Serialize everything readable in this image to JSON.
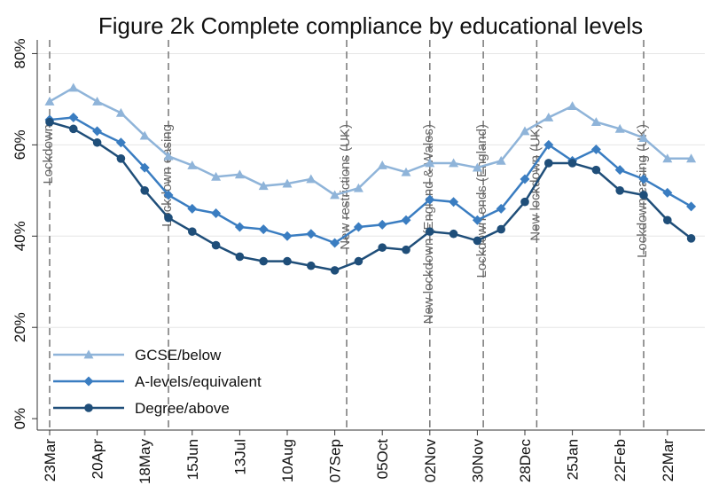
{
  "chart_data": {
    "type": "line",
    "title": "Figure 2k Complete compliance by educational levels",
    "categories": [
      "23Mar",
      null,
      "20Apr",
      null,
      "18May",
      null,
      "15Jun",
      null,
      "13Jul",
      null,
      "10Aug",
      null,
      "07Sep",
      null,
      "05Oct",
      null,
      "02Nov",
      null,
      "30Nov",
      null,
      "28Dec",
      null,
      "25Jan",
      null,
      "22Feb",
      null,
      "22Mar",
      null
    ],
    "series": [
      {
        "name": "GCSE/below",
        "color": "#8fb4d9",
        "marker": "triangle",
        "values": [
          69.5,
          72.5,
          69.5,
          67,
          62,
          57.5,
          55.5,
          53,
          53.5,
          51,
          51.5,
          52.5,
          49,
          50.5,
          55.5,
          54,
          56,
          56,
          55,
          56.5,
          63,
          66,
          68.5,
          65,
          63.5,
          61.5,
          57,
          57
        ]
      },
      {
        "name": "A-levels/equivalent",
        "color": "#3a7dc1",
        "marker": "diamond",
        "values": [
          65.5,
          66,
          63,
          60.5,
          55,
          49,
          46,
          45,
          42,
          41.5,
          40,
          40.5,
          38.5,
          42,
          42.5,
          43.5,
          48,
          47.5,
          43.5,
          46,
          52.5,
          60,
          56.5,
          59,
          54.5,
          52.5,
          49.5,
          46.5
        ]
      },
      {
        "name": "Degree/above",
        "color": "#1f4e79",
        "marker": "circle",
        "values": [
          65,
          63.5,
          60.5,
          57,
          50,
          44,
          41,
          38,
          35.5,
          34.5,
          34.5,
          33.5,
          32.5,
          34.5,
          37.5,
          37,
          41,
          40.5,
          39,
          41.5,
          47.5,
          56,
          56,
          54.5,
          50,
          49,
          43.5,
          39.5
        ]
      }
    ],
    "annotations": [
      {
        "text": "Lockdown",
        "x": 0
      },
      {
        "text": "Lockdown easing",
        "x": 5
      },
      {
        "text": "New restrictions (UK)",
        "x": 12.5
      },
      {
        "text": "New lockdown (England & Wales)",
        "x": 16
      },
      {
        "text": "Lockdown ends (England)",
        "x": 18.25
      },
      {
        "text": "New lockdown (UK)",
        "x": 20.5
      },
      {
        "text": "Lockdown easing (UK)",
        "x": 25
      }
    ],
    "ylim": [
      -2.5,
      83
    ],
    "yticks": [
      {
        "value": 0,
        "label": "0%"
      },
      {
        "value": 20,
        "label": "20%"
      },
      {
        "value": 40,
        "label": "40%"
      },
      {
        "value": 60,
        "label": "60%"
      },
      {
        "value": 80,
        "label": "80%"
      }
    ],
    "grid": true,
    "legend": "lower left"
  }
}
